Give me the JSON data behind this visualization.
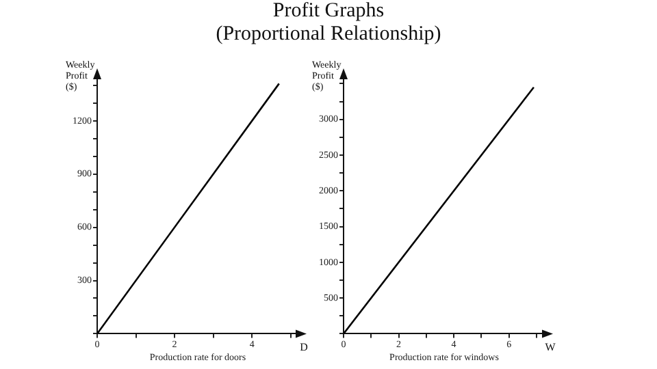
{
  "chart_data": [
    {
      "type": "line",
      "title": "Profit Graphs",
      "subtitle": "(Proportional Relationship)",
      "xlabel": "Production rate for doors",
      "ylabel": "Weekly\nProfit\n($)",
      "annotations": [
        "D"
      ],
      "x": [
        0,
        4.7
      ],
      "series": [
        {
          "color": "#000000",
          "values": [
            0,
            1410
          ]
        }
      ],
      "xlim": [
        0,
        5.2
      ],
      "xticks": [
        0,
        {
          "value": 1,
          "label": null
        },
        2,
        {
          "value": 3,
          "label": null
        },
        4,
        {
          "value": 5,
          "label": null
        }
      ],
      "ylim": [
        0,
        1450
      ],
      "yticks": [
        {
          "value": 0,
          "label": null
        },
        {
          "value": 100,
          "label": null
        },
        {
          "value": 200,
          "label": null
        },
        300,
        {
          "value": 400,
          "label": null
        },
        {
          "value": 500,
          "label": null
        },
        600,
        {
          "value": 700,
          "label": null
        },
        {
          "value": 800,
          "label": null
        },
        900,
        {
          "value": 1000,
          "label": null
        },
        {
          "value": 1100,
          "label": null
        },
        1200,
        {
          "value": 1300,
          "label": null
        },
        {
          "value": 1400,
          "label": null
        }
      ],
      "grid": false,
      "legend": false,
      "marker": "none",
      "line_style": "solid"
    },
    {
      "type": "line",
      "xlabel": "Production rate for windows",
      "ylabel": "Weekly\nProfit\n($)",
      "annotations": [
        "W"
      ],
      "x": [
        0,
        6.9
      ],
      "series": [
        {
          "color": "#000000",
          "values": [
            0,
            3450
          ]
        }
      ],
      "xlim": [
        0,
        7.3
      ],
      "xticks": [
        0,
        {
          "value": 1,
          "label": null
        },
        2,
        {
          "value": 3,
          "label": null
        },
        4,
        {
          "value": 5,
          "label": null
        },
        6,
        {
          "value": 7,
          "label": null
        }
      ],
      "ylim": [
        0,
        3600
      ],
      "yticks": [
        {
          "value": 0,
          "label": null
        },
        {
          "value": 250,
          "label": null
        },
        500,
        {
          "value": 750,
          "label": null
        },
        1000,
        {
          "value": 1250,
          "label": null
        },
        1500,
        {
          "value": 1750,
          "label": null
        },
        2000,
        {
          "value": 2250,
          "label": null
        },
        2500,
        {
          "value": 2750,
          "label": null
        },
        3000,
        {
          "value": 3250,
          "label": null
        },
        {
          "value": 3500,
          "label": null
        }
      ],
      "grid": false,
      "legend": false,
      "marker": "none",
      "line_style": "solid"
    }
  ]
}
